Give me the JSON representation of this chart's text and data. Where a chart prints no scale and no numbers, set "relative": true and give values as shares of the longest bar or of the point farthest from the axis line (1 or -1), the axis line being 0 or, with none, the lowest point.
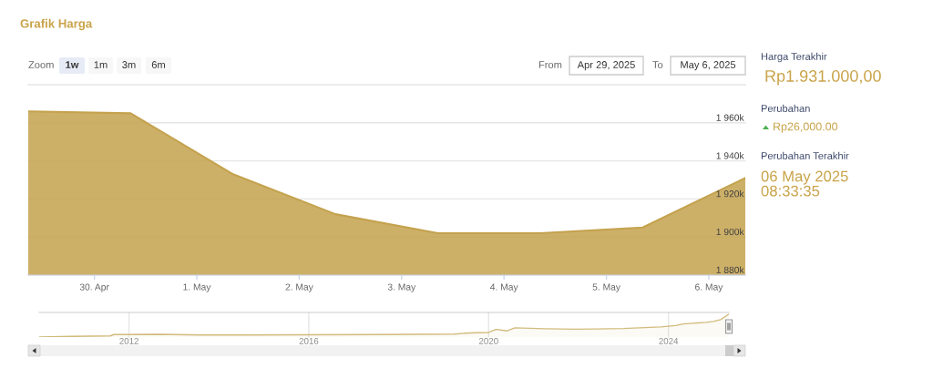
{
  "chart_data": [
    {
      "type": "area",
      "title": "Grafik Harga",
      "x": [
        "2025-04-29T08:30",
        "2025-04-30T08:30",
        "2025-05-01T08:30",
        "2025-05-02T08:30",
        "2025-05-03T08:30",
        "2025-05-04T08:30",
        "2025-05-05T08:30",
        "2025-05-06T08:33"
      ],
      "series": [
        {
          "color": "#c4a24e",
          "values": [
            1966000,
            1965000,
            1933000,
            1912000,
            1902000,
            1902000,
            1905000,
            1931000
          ]
        }
      ],
      "xlim": [
        "2025-04-29T08:30",
        "2025-05-06T08:33"
      ],
      "xticks": [
        {
          "value": "2025-04-30",
          "label": "30. Apr"
        },
        {
          "value": "2025-05-01",
          "label": "1. May"
        },
        {
          "value": "2025-05-02",
          "label": "2. May"
        },
        {
          "value": "2025-05-03",
          "label": "3. May"
        },
        {
          "value": "2025-05-04",
          "label": "4. May"
        },
        {
          "value": "2025-05-05",
          "label": "5. May"
        },
        {
          "value": "2025-05-06",
          "label": "6. May"
        }
      ],
      "ylim": [
        1880000,
        1980000
      ],
      "yticks": [
        {
          "value": 1880000,
          "label": "1 880k"
        },
        {
          "value": 1900000,
          "label": "1 900k"
        },
        {
          "value": 1920000,
          "label": "1 920k"
        },
        {
          "value": 1940000,
          "label": "1 940k"
        },
        {
          "value": 1960000,
          "label": "1 960k"
        },
        {
          "value": 1980000,
          "label": null
        }
      ],
      "grid": "y",
      "annotations": [
        "Zoom",
        "1w",
        "1m",
        "3m",
        "6m",
        "From",
        "Apr 29, 2025",
        "To",
        "May 6, 2025"
      ]
    },
    {
      "type": "area",
      "relative": true,
      "x": [
        "2010-01",
        "2010-10",
        "2011-08",
        "2011-09",
        "2012-01",
        "2012-09",
        "2013-08",
        "2014-09",
        "2016-01",
        "2017-09",
        "2019-04",
        "2019-08",
        "2020-01",
        "2020-03",
        "2020-06",
        "2020-08",
        "2021-04",
        "2021-12",
        "2022-06",
        "2023-01",
        "2023-11",
        "2024-03",
        "2024-05",
        "2024-11",
        "2025-01",
        "2025-03",
        "2025-05-06T08:33"
      ],
      "series": [
        {
          "color": "#d2bb7c",
          "values": [
            0,
            0.03,
            0.05,
            0.11,
            0.11,
            0.12,
            0.09,
            0.09,
            0.1,
            0.11,
            0.13,
            0.18,
            0.2,
            0.33,
            0.27,
            0.4,
            0.36,
            0.34,
            0.35,
            0.37,
            0.44,
            0.5,
            0.57,
            0.64,
            0.68,
            0.76,
            1
          ]
        }
      ],
      "xlim": [
        "2010-01",
        "2025-05-06T08:33"
      ],
      "xticks": [
        {
          "value": "2012",
          "label": "2012"
        },
        {
          "value": "2016",
          "label": "2016"
        },
        {
          "value": "2020",
          "label": "2020"
        },
        {
          "value": "2024",
          "label": "2024"
        }
      ],
      "grid": "x"
    },
    {
      "type": "other",
      "annotations": [
        "Harga Terakhir",
        "Rp1.931.000,00",
        "Perubahan",
        "Rp26,000.00",
        "Perubahan Terakhir",
        "06 May 2025\n08:33:35"
      ]
    }
  ]
}
